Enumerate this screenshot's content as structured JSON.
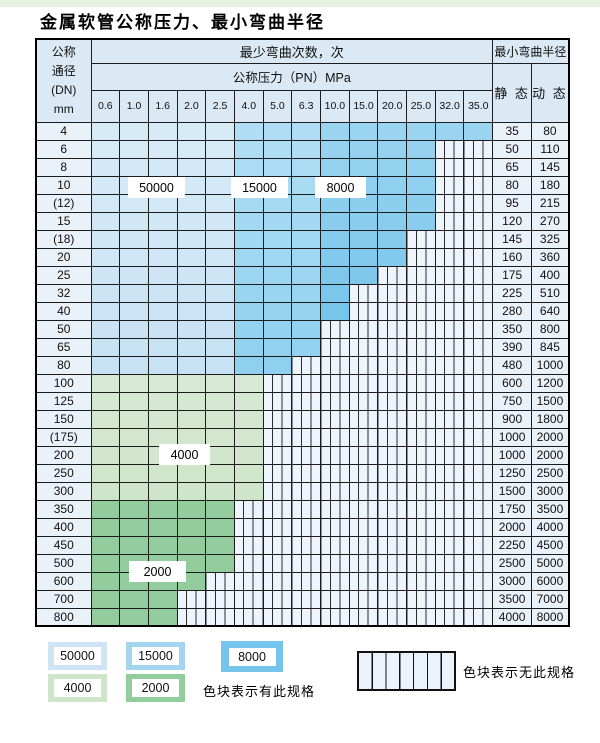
{
  "title": "金属软管公称压力、最小弯曲半径",
  "table": {
    "header": {
      "dn_label_lines": [
        "公称",
        "通径",
        "(DN)",
        "mm"
      ],
      "cycles_label": "最少弯曲次数，次",
      "pressure_label": "公称压力（PN）MPa",
      "radius_label": "最小弯曲半径",
      "static_label": "静 态",
      "dynamic_label": "动 态",
      "pressures": [
        "0.6",
        "1.0",
        "1.6",
        "2.0",
        "2.5",
        "4.0",
        "5.0",
        "6.3",
        "10.0",
        "15.0",
        "20.0",
        "25.0",
        "32.0",
        "35.0"
      ]
    },
    "zones": {
      "blue_by_pressure": [
        {
          "cycles": "50000",
          "from": "0.6",
          "to": "2.5",
          "color": "#c6e2f4"
        },
        {
          "cycles": "15000",
          "from": "4.0",
          "to": "6.3",
          "color": "#8fd0f0"
        },
        {
          "cycles": "8000",
          "from": "10.0",
          "to": "35.0",
          "color": "#6ec1ea"
        }
      ],
      "green_4000": "#cfe5ca",
      "green_2000": "#93cd9d"
    },
    "rows": [
      {
        "dn": "4",
        "zone": "blue",
        "available_up_to": "35.0",
        "static": "35",
        "dynamic": "80"
      },
      {
        "dn": "6",
        "zone": "blue",
        "available_up_to": "25.0",
        "static": "50",
        "dynamic": "110"
      },
      {
        "dn": "8",
        "zone": "blue",
        "available_up_to": "25.0",
        "static": "65",
        "dynamic": "145"
      },
      {
        "dn": "10",
        "zone": "blue",
        "available_up_to": "25.0",
        "static": "80",
        "dynamic": "180"
      },
      {
        "dn": "(12)",
        "zone": "blue",
        "available_up_to": "25.0",
        "static": "95",
        "dynamic": "215"
      },
      {
        "dn": "15",
        "zone": "blue",
        "available_up_to": "25.0",
        "static": "120",
        "dynamic": "270"
      },
      {
        "dn": "(18)",
        "zone": "blue",
        "available_up_to": "20.0",
        "static": "145",
        "dynamic": "325"
      },
      {
        "dn": "20",
        "zone": "blue",
        "available_up_to": "20.0",
        "static": "160",
        "dynamic": "360"
      },
      {
        "dn": "25",
        "zone": "blue",
        "available_up_to": "15.0",
        "static": "175",
        "dynamic": "400"
      },
      {
        "dn": "32",
        "zone": "blue",
        "available_up_to": "10.0",
        "static": "225",
        "dynamic": "510"
      },
      {
        "dn": "40",
        "zone": "blue",
        "available_up_to": "10.0",
        "static": "280",
        "dynamic": "640"
      },
      {
        "dn": "50",
        "zone": "blue",
        "available_up_to": "6.3",
        "static": "350",
        "dynamic": "800"
      },
      {
        "dn": "65",
        "zone": "blue",
        "available_up_to": "6.3",
        "static": "390",
        "dynamic": "845"
      },
      {
        "dn": "80",
        "zone": "blue",
        "available_up_to": "5.0",
        "static": "480",
        "dynamic": "1000"
      },
      {
        "dn": "100",
        "zone": "green4000",
        "available_up_to": "4.0",
        "static": "600",
        "dynamic": "1200"
      },
      {
        "dn": "125",
        "zone": "green4000",
        "available_up_to": "4.0",
        "static": "750",
        "dynamic": "1500"
      },
      {
        "dn": "150",
        "zone": "green4000",
        "available_up_to": "4.0",
        "static": "900",
        "dynamic": "1800"
      },
      {
        "dn": "(175)",
        "zone": "green4000",
        "available_up_to": "4.0",
        "static": "1000",
        "dynamic": "2000"
      },
      {
        "dn": "200",
        "zone": "green4000",
        "available_up_to": "4.0",
        "static": "1000",
        "dynamic": "2000"
      },
      {
        "dn": "250",
        "zone": "green4000",
        "available_up_to": "4.0",
        "static": "1250",
        "dynamic": "2500"
      },
      {
        "dn": "300",
        "zone": "green4000",
        "available_up_to": "4.0",
        "static": "1500",
        "dynamic": "3000"
      },
      {
        "dn": "350",
        "zone": "green2000",
        "available_up_to": "2.5",
        "static": "1750",
        "dynamic": "3500"
      },
      {
        "dn": "400",
        "zone": "green2000",
        "available_up_to": "2.5",
        "static": "2000",
        "dynamic": "4000"
      },
      {
        "dn": "450",
        "zone": "green2000",
        "available_up_to": "2.5",
        "static": "2250",
        "dynamic": "4500"
      },
      {
        "dn": "500",
        "zone": "green2000",
        "available_up_to": "2.5",
        "static": "2500",
        "dynamic": "5000"
      },
      {
        "dn": "600",
        "zone": "green2000",
        "available_up_to": "2.0",
        "static": "3000",
        "dynamic": "6000"
      },
      {
        "dn": "700",
        "zone": "green2000",
        "available_up_to": "1.6",
        "static": "3500",
        "dynamic": "7000"
      },
      {
        "dn": "800",
        "zone": "green2000",
        "available_up_to": "1.6",
        "static": "4000",
        "dynamic": "8000"
      }
    ],
    "overlays": {
      "b50000": "50000",
      "b15000": "15000",
      "b8000": "8000",
      "g4000": "4000",
      "g2000": "2000"
    }
  },
  "legend": {
    "swatches": [
      {
        "label": "50000",
        "color": "#cfe4f4"
      },
      {
        "label": "15000",
        "color": "#a3d5f1"
      },
      {
        "label": "8000",
        "color": "#74c4ec"
      },
      {
        "label": "4000",
        "color": "#cfe5ca"
      },
      {
        "label": "2000",
        "color": "#93cd9d"
      }
    ],
    "has_spec_note": "色块表示有此规格",
    "no_spec_note": "色块表示无此规格"
  }
}
